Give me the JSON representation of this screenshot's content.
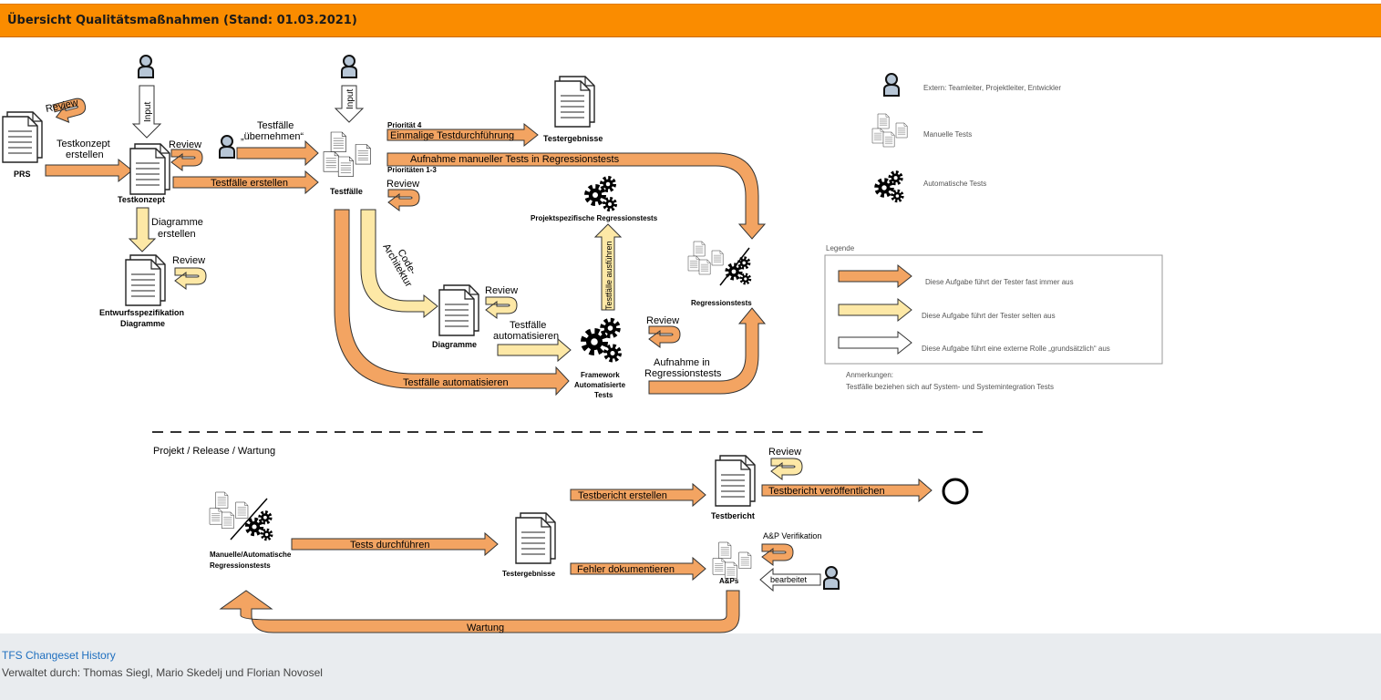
{
  "header": {
    "title": "Übersicht Qualitätsmaßnahmen (Stand: 01.03.2021)"
  },
  "labels": {
    "prs": "PRS",
    "review": "Review",
    "input": "Input",
    "testkonzept_erstellen_1": "Testkonzept",
    "testkonzept_erstellen_2": "erstellen",
    "testkonzept": "Testkonzept",
    "diagramme_erstellen_1": "Diagramme",
    "diagramme_erstellen_2": "erstellen",
    "entwurf_1": "Entwurfsspezifikation",
    "entwurf_2": "Diagramme",
    "testfaelle_uebernehmen_1": "Testfälle",
    "testfaelle_uebernehmen_2": "„übernehmen“",
    "testfaelle_erstellen": "Testfälle erstellen",
    "testfaelle": "Testfälle",
    "prioritaet_4": "Priorität 4",
    "einmalige": "Einmalige Testdurchführung",
    "testergebnisse": "Testergebnisse",
    "aufnahme_manuell": "Aufnahme manueller Tests in Regressionstests",
    "prioritaeten_13": "Prioritäten 1-3",
    "projektspezifische": "Projektspezifische Regressionstests",
    "code_arch_1": "Code-",
    "code_arch_2": "Architektur",
    "diagramme": "Diagramme",
    "testfaelle_ausfuehren": "Testfälle ausführen",
    "testfaelle_automatisieren_1": "Testfälle",
    "testfaelle_automatisieren_2": "automatisieren",
    "framework_1": "Framework",
    "framework_2": "Automatisierte",
    "framework_3": "Tests",
    "testfaelle_automatisieren": "Testfälle automatisieren",
    "aufnahme_in_1": "Aufnahme in",
    "aufnahme_in_2": "Regressionstests",
    "regressionstests": "Regressionstests",
    "projekt_release": "Projekt / Release / Wartung",
    "manuelle_auto_1": "Manuelle/Automatische",
    "manuelle_auto_2": "Regressionstests",
    "tests_durchfuehren": "Tests durchführen",
    "testergebnisse_2": "Testergebnisse",
    "testbericht_erstellen": "Testbericht erstellen",
    "testbericht": "Testbericht",
    "testbericht_veroeffentlichen": "Testbericht veröffentlichen",
    "fehler_dokumentieren": "Fehler dokumentieren",
    "aps": "A&Ps",
    "ap_verifikation": "A&P Verifikation",
    "bearbeitet": "bearbeitet",
    "wartung": "Wartung"
  },
  "legend": {
    "extern": "Extern: Teamleiter, Projektleiter, Entwickler",
    "manuelle": "Manuelle Tests",
    "automatische": "Automatische Tests",
    "title": "Legende",
    "orange": "Diese Aufgabe führt der Tester fast immer aus",
    "yellow": "Diese Aufgabe führt der Tester selten aus",
    "white": "Diese Aufgabe führt eine externe Rolle „grundsätzlich“ aus",
    "anmerkungen_1": "Anmerkungen:",
    "anmerkungen_2": "Testfälle beziehen sich auf System- und Systemintegration Tests"
  },
  "colors": {
    "orange": "#f3a462",
    "yellow": "#fde8a6",
    "title_bg": "#fa8c00",
    "link": "#1f6fbf"
  },
  "footer": {
    "link": "TFS Changeset History",
    "managed": "Verwaltet durch: Thomas Siegl, Mario Skedelj und Florian Novosel"
  }
}
